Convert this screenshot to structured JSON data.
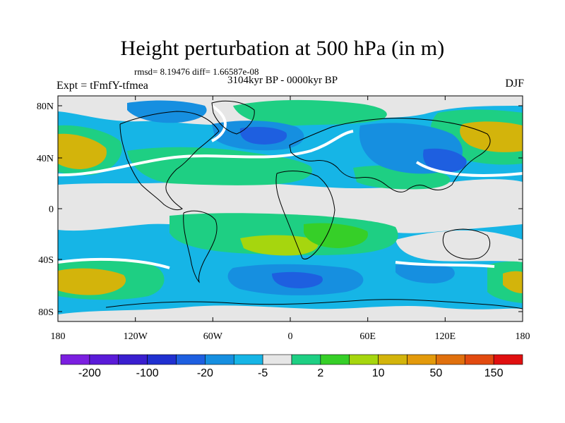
{
  "title": "Height perturbation at 500 hPa (in m)",
  "stats": "rmsd= 8.19476 diff= 1.66587e-08",
  "period": "3104kyr BP - 0000kyr BP",
  "experiment": "Expt = tFmfY-tfmea",
  "season": "DJF",
  "lat_ticks": [
    "80N",
    "40N",
    "0",
    "40S",
    "80S"
  ],
  "lon_ticks": [
    "180",
    "120W",
    "60W",
    "0",
    "60E",
    "120E",
    "180"
  ],
  "colorbar": {
    "colors": [
      "#7b1fe0",
      "#5a1bd8",
      "#3a1fcf",
      "#2030d0",
      "#1e5fe0",
      "#168fe0",
      "#16b5e6",
      "#e6e6e6",
      "#1ecf83",
      "#36cf28",
      "#a6d60e",
      "#d3b40b",
      "#e39a0b",
      "#e0700d",
      "#e24a10",
      "#e01010"
    ],
    "labels": [
      "-200",
      "-100",
      "-20",
      "-5",
      "2",
      "10",
      "50",
      "150"
    ]
  },
  "palette": {
    "strong_neg": "#1e5fe0",
    "neg": "#168fe0",
    "weak_neg": "#16b5e6",
    "neutral": "#e6e6e6",
    "weak_pos": "#1ecf83",
    "pos": "#36cf28",
    "strong_pos": "#a6d60e",
    "high_pos": "#d3b40b"
  }
}
